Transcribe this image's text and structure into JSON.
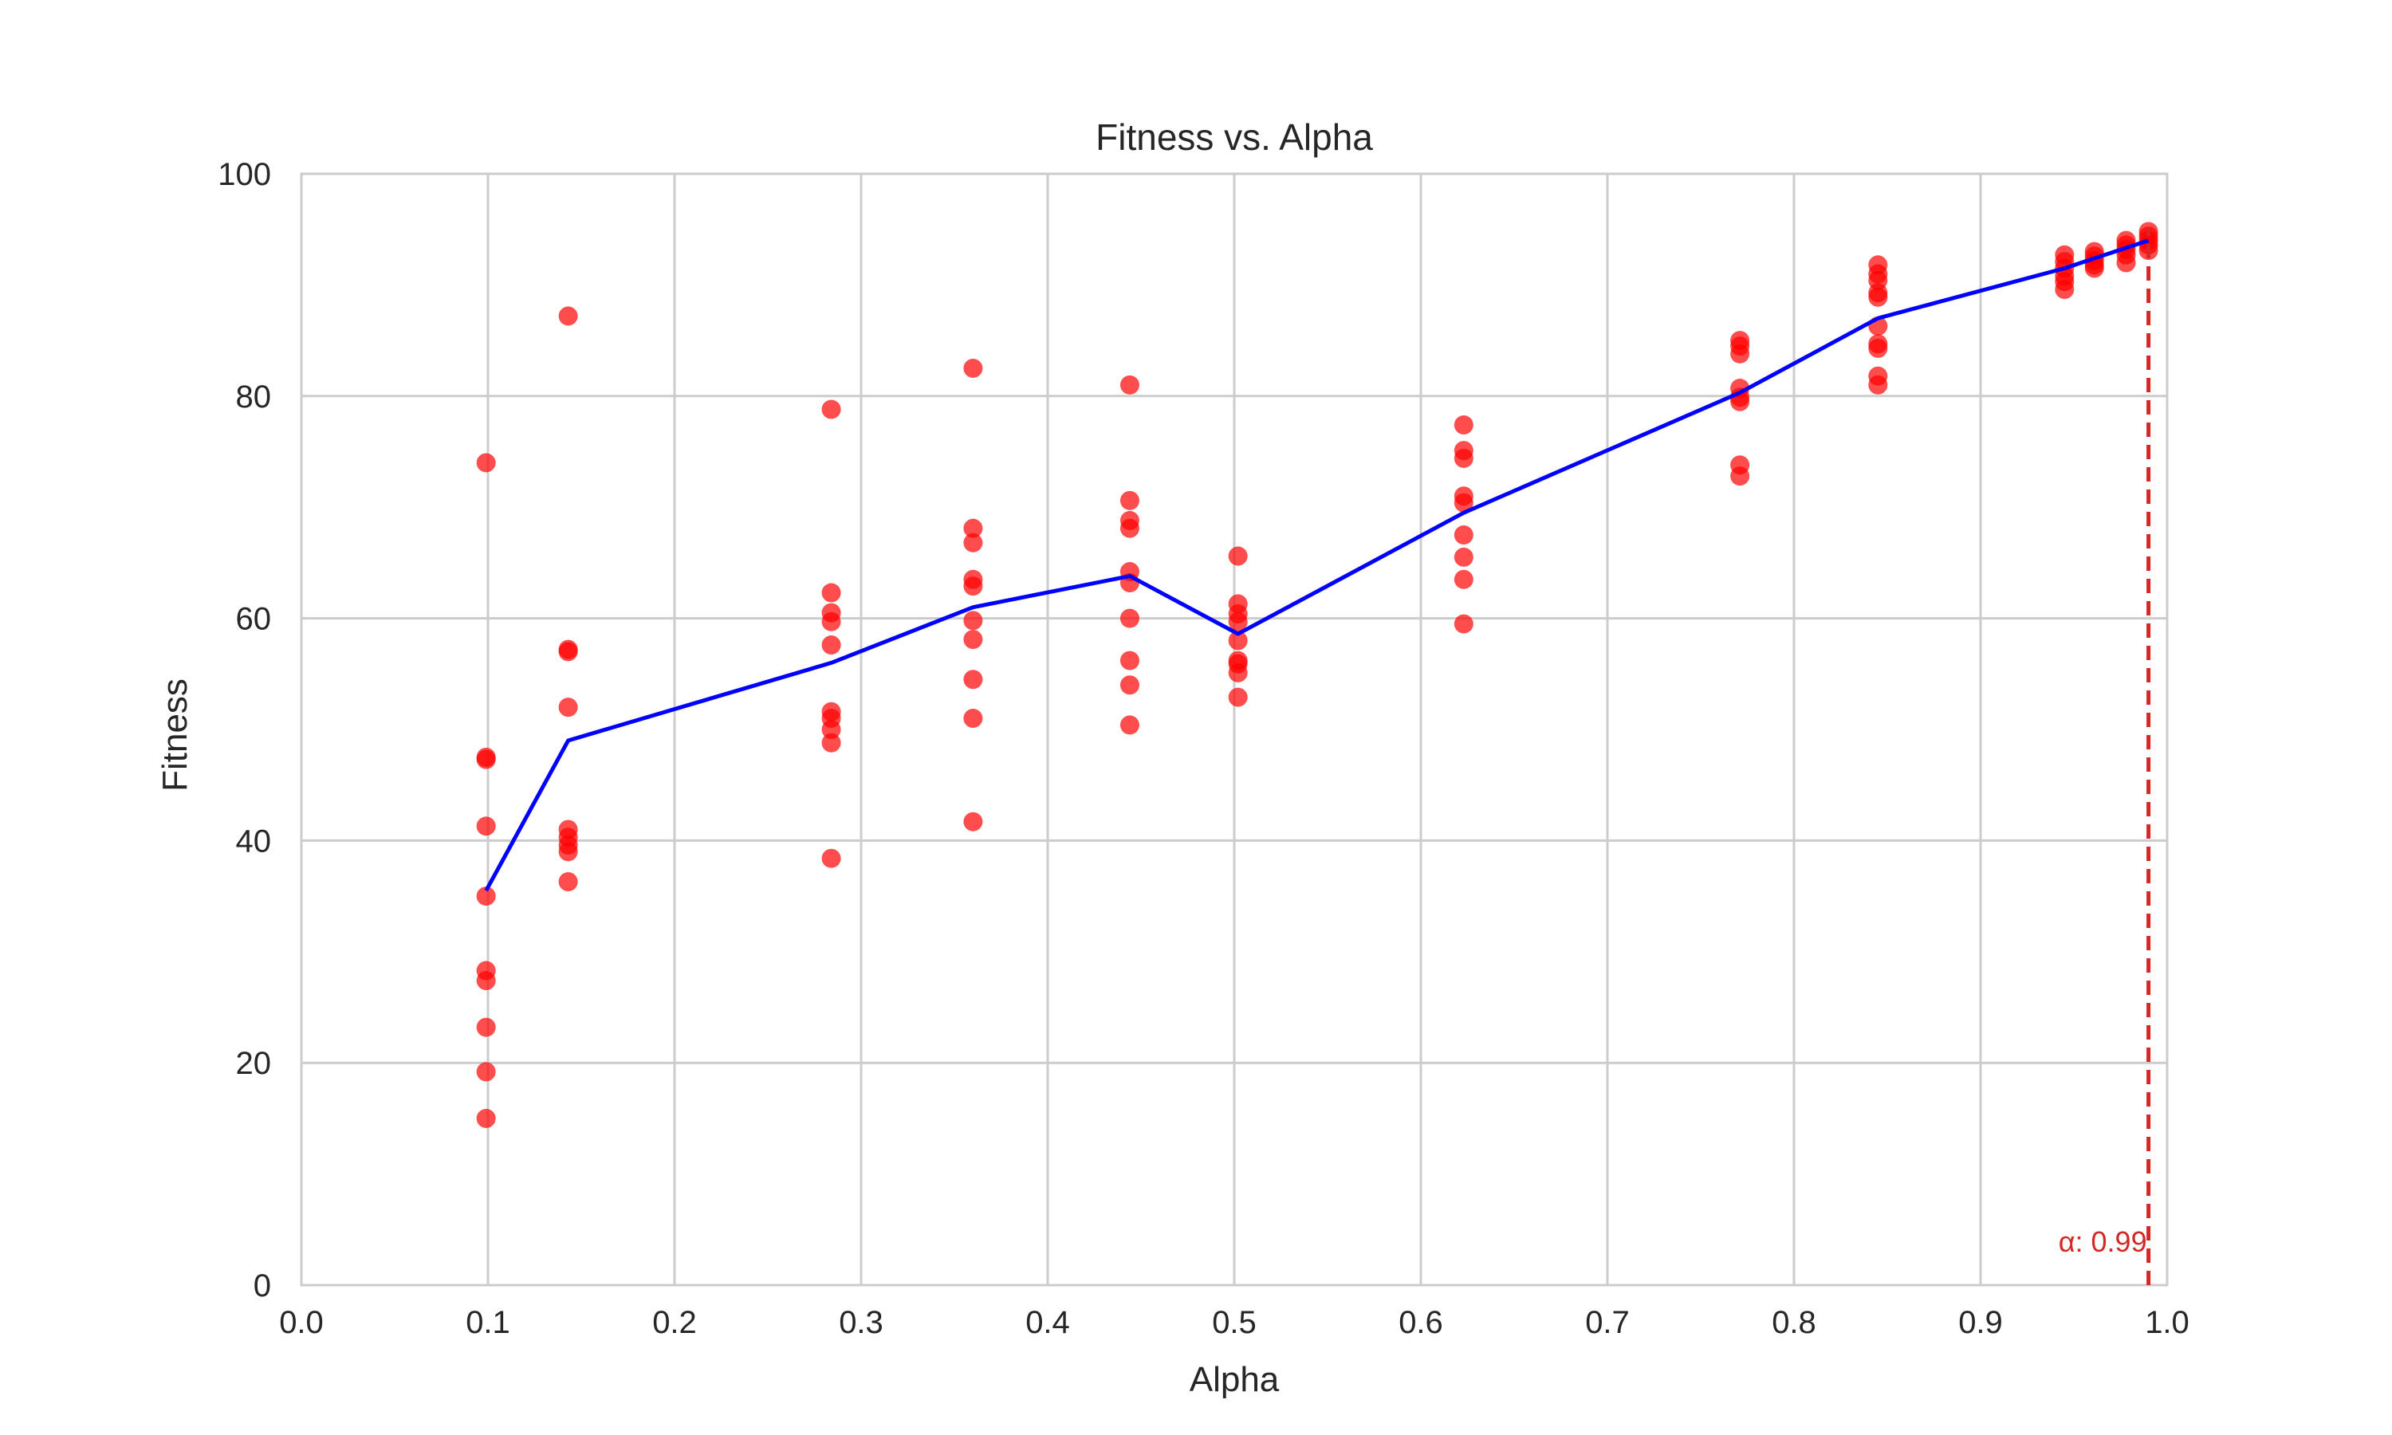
{
  "chart_data": {
    "type": "scatter",
    "title": "Fitness vs. Alpha",
    "xlabel": "Alpha",
    "ylabel": "Fitness",
    "xlim": [
      0.0,
      1.0
    ],
    "ylim": [
      0,
      100
    ],
    "x_ticks": [
      "0.0",
      "0.1",
      "0.2",
      "0.3",
      "0.4",
      "0.5",
      "0.6",
      "0.7",
      "0.8",
      "0.9",
      "1.0"
    ],
    "y_ticks": [
      "0",
      "20",
      "40",
      "60",
      "80",
      "100"
    ],
    "grid": true,
    "colors": {
      "points": "#ff0000",
      "mean_line": "#0000ff",
      "marker_line": "#d62728",
      "grid": "#cccccc",
      "spine": "#cccccc"
    },
    "scatter_points": [
      {
        "x": 0.099,
        "y": 74.0
      },
      {
        "x": 0.099,
        "y": 47.5
      },
      {
        "x": 0.099,
        "y": 47.3
      },
      {
        "x": 0.099,
        "y": 41.3
      },
      {
        "x": 0.099,
        "y": 35.0
      },
      {
        "x": 0.099,
        "y": 28.3
      },
      {
        "x": 0.099,
        "y": 27.4
      },
      {
        "x": 0.099,
        "y": 23.2
      },
      {
        "x": 0.099,
        "y": 19.2
      },
      {
        "x": 0.099,
        "y": 15.0
      },
      {
        "x": 0.143,
        "y": 87.2
      },
      {
        "x": 0.143,
        "y": 57.2
      },
      {
        "x": 0.143,
        "y": 57.0
      },
      {
        "x": 0.143,
        "y": 52.0
      },
      {
        "x": 0.143,
        "y": 41.0
      },
      {
        "x": 0.143,
        "y": 40.3
      },
      {
        "x": 0.143,
        "y": 39.6
      },
      {
        "x": 0.143,
        "y": 39.0
      },
      {
        "x": 0.143,
        "y": 36.3
      },
      {
        "x": 0.284,
        "y": 78.8
      },
      {
        "x": 0.284,
        "y": 62.3
      },
      {
        "x": 0.284,
        "y": 60.5
      },
      {
        "x": 0.284,
        "y": 59.7
      },
      {
        "x": 0.284,
        "y": 57.6
      },
      {
        "x": 0.284,
        "y": 51.6
      },
      {
        "x": 0.284,
        "y": 51.0
      },
      {
        "x": 0.284,
        "y": 50.0
      },
      {
        "x": 0.284,
        "y": 48.8
      },
      {
        "x": 0.284,
        "y": 38.4
      },
      {
        "x": 0.36,
        "y": 82.5
      },
      {
        "x": 0.36,
        "y": 68.1
      },
      {
        "x": 0.36,
        "y": 66.8
      },
      {
        "x": 0.36,
        "y": 63.5
      },
      {
        "x": 0.36,
        "y": 62.9
      },
      {
        "x": 0.36,
        "y": 59.8
      },
      {
        "x": 0.36,
        "y": 58.1
      },
      {
        "x": 0.36,
        "y": 54.5
      },
      {
        "x": 0.36,
        "y": 51.0
      },
      {
        "x": 0.36,
        "y": 41.7
      },
      {
        "x": 0.444,
        "y": 81.0
      },
      {
        "x": 0.444,
        "y": 70.6
      },
      {
        "x": 0.444,
        "y": 68.8
      },
      {
        "x": 0.444,
        "y": 68.1
      },
      {
        "x": 0.444,
        "y": 64.2
      },
      {
        "x": 0.444,
        "y": 63.2
      },
      {
        "x": 0.444,
        "y": 60.0
      },
      {
        "x": 0.444,
        "y": 56.2
      },
      {
        "x": 0.444,
        "y": 54.0
      },
      {
        "x": 0.444,
        "y": 50.4
      },
      {
        "x": 0.502,
        "y": 65.6
      },
      {
        "x": 0.502,
        "y": 61.3
      },
      {
        "x": 0.502,
        "y": 60.4
      },
      {
        "x": 0.502,
        "y": 59.7
      },
      {
        "x": 0.502,
        "y": 58.0
      },
      {
        "x": 0.502,
        "y": 56.2
      },
      {
        "x": 0.502,
        "y": 55.9
      },
      {
        "x": 0.502,
        "y": 55.1
      },
      {
        "x": 0.502,
        "y": 52.9
      },
      {
        "x": 0.623,
        "y": 77.4
      },
      {
        "x": 0.623,
        "y": 75.1
      },
      {
        "x": 0.623,
        "y": 74.4
      },
      {
        "x": 0.623,
        "y": 71.0
      },
      {
        "x": 0.623,
        "y": 70.4
      },
      {
        "x": 0.623,
        "y": 67.5
      },
      {
        "x": 0.623,
        "y": 65.5
      },
      {
        "x": 0.623,
        "y": 63.5
      },
      {
        "x": 0.623,
        "y": 59.5
      },
      {
        "x": 0.771,
        "y": 85.0
      },
      {
        "x": 0.771,
        "y": 84.5
      },
      {
        "x": 0.771,
        "y": 83.8
      },
      {
        "x": 0.771,
        "y": 80.7
      },
      {
        "x": 0.771,
        "y": 79.9
      },
      {
        "x": 0.771,
        "y": 79.5
      },
      {
        "x": 0.771,
        "y": 73.8
      },
      {
        "x": 0.771,
        "y": 72.8
      },
      {
        "x": 0.845,
        "y": 91.8
      },
      {
        "x": 0.845,
        "y": 91.0
      },
      {
        "x": 0.845,
        "y": 90.4
      },
      {
        "x": 0.845,
        "y": 89.3
      },
      {
        "x": 0.845,
        "y": 88.9
      },
      {
        "x": 0.845,
        "y": 86.3
      },
      {
        "x": 0.845,
        "y": 84.7
      },
      {
        "x": 0.845,
        "y": 84.3
      },
      {
        "x": 0.845,
        "y": 81.8
      },
      {
        "x": 0.845,
        "y": 81.0
      },
      {
        "x": 0.945,
        "y": 92.7
      },
      {
        "x": 0.945,
        "y": 92.1
      },
      {
        "x": 0.945,
        "y": 91.5
      },
      {
        "x": 0.945,
        "y": 90.8
      },
      {
        "x": 0.945,
        "y": 90.3
      },
      {
        "x": 0.945,
        "y": 89.6
      },
      {
        "x": 0.961,
        "y": 93.0
      },
      {
        "x": 0.961,
        "y": 92.6
      },
      {
        "x": 0.961,
        "y": 92.2
      },
      {
        "x": 0.961,
        "y": 91.8
      },
      {
        "x": 0.961,
        "y": 91.5
      },
      {
        "x": 0.978,
        "y": 94.0
      },
      {
        "x": 0.978,
        "y": 93.6
      },
      {
        "x": 0.978,
        "y": 93.2
      },
      {
        "x": 0.978,
        "y": 92.7
      },
      {
        "x": 0.978,
        "y": 92.0
      },
      {
        "x": 0.99,
        "y": 94.8
      },
      {
        "x": 0.99,
        "y": 94.4
      },
      {
        "x": 0.99,
        "y": 94.0
      },
      {
        "x": 0.99,
        "y": 93.6
      },
      {
        "x": 0.99,
        "y": 93.1
      }
    ],
    "mean_line": [
      {
        "x": 0.099,
        "y": 35.5
      },
      {
        "x": 0.143,
        "y": 49.0
      },
      {
        "x": 0.284,
        "y": 56.0
      },
      {
        "x": 0.36,
        "y": 61.0
      },
      {
        "x": 0.444,
        "y": 63.8
      },
      {
        "x": 0.502,
        "y": 58.6
      },
      {
        "x": 0.623,
        "y": 69.5
      },
      {
        "x": 0.771,
        "y": 80.3
      },
      {
        "x": 0.845,
        "y": 87.0
      },
      {
        "x": 0.945,
        "y": 91.5
      },
      {
        "x": 0.99,
        "y": 94.0
      }
    ],
    "vertical_marker": {
      "x": 0.99,
      "label": "α: 0.99"
    }
  }
}
